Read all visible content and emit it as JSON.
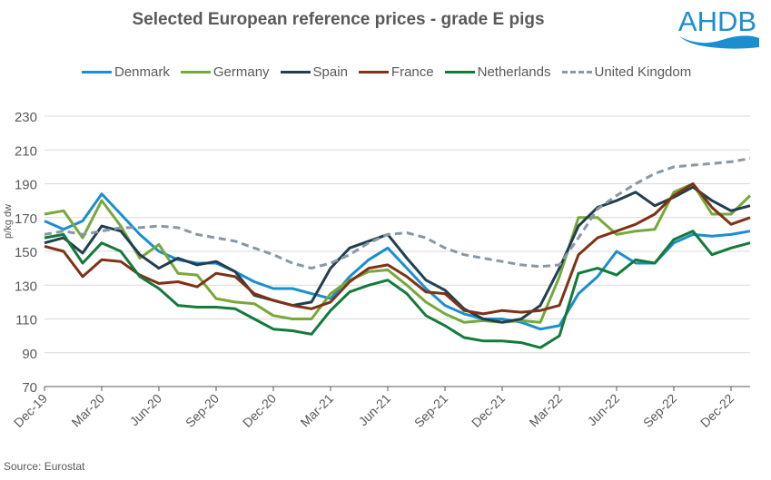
{
  "chart_data": {
    "type": "line",
    "title": "Selected European reference prices - grade E pigs",
    "ylabel": "p/kg dw",
    "xlabel": "",
    "ylim": [
      70,
      230
    ],
    "yticks": [
      70,
      90,
      110,
      130,
      150,
      170,
      190,
      210,
      230
    ],
    "grid": true,
    "legend_position": "top",
    "source": "Source: Eurostat",
    "logo_text": "AHDB",
    "x": [
      "Dec-19",
      "Jan-20",
      "Feb-20",
      "Mar-20",
      "Apr-20",
      "May-20",
      "Jun-20",
      "Jul-20",
      "Aug-20",
      "Sep-20",
      "Oct-20",
      "Nov-20",
      "Dec-20",
      "Jan-21",
      "Feb-21",
      "Mar-21",
      "Apr-21",
      "May-21",
      "Jun-21",
      "Jul-21",
      "Aug-21",
      "Sep-21",
      "Oct-21",
      "Nov-21",
      "Dec-21",
      "Jan-22",
      "Feb-22",
      "Mar-22",
      "Apr-22",
      "May-22",
      "Jun-22",
      "Jul-22",
      "Aug-22",
      "Sep-22",
      "Oct-22",
      "Nov-22",
      "Dec-22",
      "Jan-23"
    ],
    "xtick_labels": [
      "Dec-19",
      "Mar-20",
      "Jun-20",
      "Sep-20",
      "Dec-20",
      "Mar-21",
      "Jun-21",
      "Sep-21",
      "Dec-21",
      "Mar-22",
      "Jun-22",
      "Sep-22",
      "Dec-22"
    ],
    "series": [
      {
        "name": "Denmark",
        "color": "#1B8ED0",
        "dash": false,
        "values": [
          168,
          163,
          168,
          184,
          172,
          160,
          150,
          145,
          143,
          143,
          138,
          132,
          128,
          128,
          125,
          122,
          135,
          145,
          152,
          140,
          128,
          118,
          113,
          110,
          110,
          108,
          104,
          106,
          125,
          135,
          150,
          143,
          143,
          155,
          160,
          159,
          160,
          162
        ]
      },
      {
        "name": "Germany",
        "color": "#76A83A",
        "dash": false,
        "values": [
          172,
          174,
          158,
          180,
          165,
          146,
          154,
          137,
          136,
          122,
          120,
          119,
          112,
          110,
          110,
          125,
          133,
          138,
          139,
          130,
          120,
          113,
          108,
          109,
          108,
          109,
          108,
          135,
          170,
          170,
          160,
          162,
          163,
          185,
          190,
          172,
          172,
          183
        ]
      },
      {
        "name": "Spain",
        "color": "#213F4F",
        "dash": false,
        "values": [
          155,
          158,
          149,
          165,
          162,
          148,
          140,
          146,
          142,
          144,
          138,
          124,
          121,
          118,
          120,
          140,
          152,
          156,
          160,
          146,
          133,
          127,
          116,
          110,
          108,
          110,
          118,
          140,
          165,
          176,
          180,
          185,
          177,
          182,
          188,
          180,
          174,
          177
        ]
      },
      {
        "name": "France",
        "color": "#7E3216",
        "dash": false,
        "values": [
          153,
          150,
          135,
          145,
          144,
          136,
          131,
          132,
          129,
          137,
          135,
          125,
          121,
          118,
          116,
          120,
          132,
          140,
          142,
          135,
          126,
          125,
          115,
          113,
          115,
          114,
          115,
          118,
          148,
          158,
          162,
          166,
          172,
          183,
          190,
          176,
          166,
          170
        ]
      },
      {
        "name": "Netherlands",
        "color": "#137A3A",
        "dash": false,
        "values": [
          158,
          160,
          143,
          155,
          150,
          135,
          128,
          118,
          117,
          117,
          116,
          110,
          104,
          103,
          101,
          115,
          126,
          130,
          133,
          125,
          112,
          106,
          99,
          97,
          97,
          96,
          93,
          100,
          137,
          140,
          136,
          145,
          143,
          157,
          162,
          148,
          152,
          155
        ]
      },
      {
        "name": "United Kingdom",
        "color": "#8699A4",
        "dash": true,
        "values": [
          160,
          162,
          160,
          162,
          164,
          164,
          165,
          164,
          160,
          158,
          156,
          152,
          148,
          143,
          140,
          143,
          148,
          155,
          160,
          161,
          158,
          152,
          148,
          146,
          144,
          142,
          141,
          142,
          158,
          175,
          183,
          190,
          196,
          200,
          201,
          202,
          203,
          205
        ]
      }
    ]
  }
}
